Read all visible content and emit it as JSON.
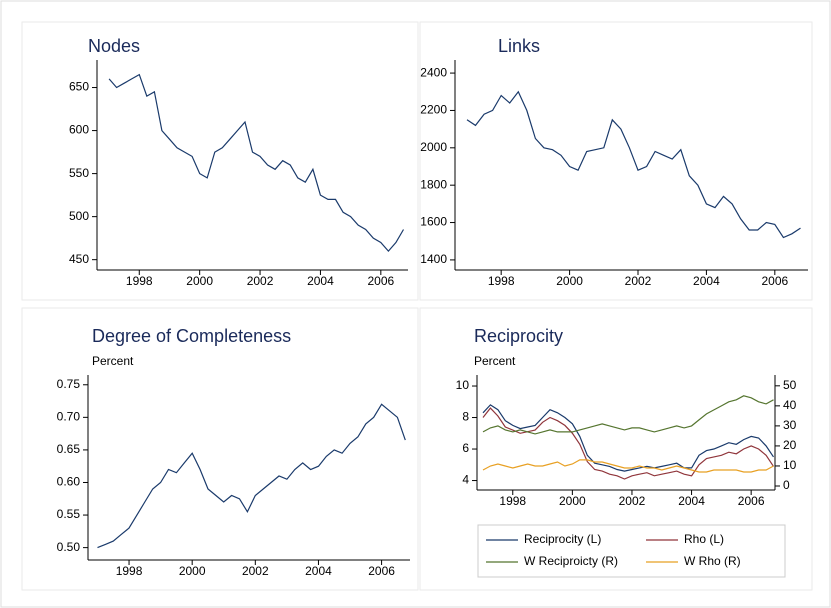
{
  "chart_data": [
    {
      "type": "line",
      "title": "Nodes",
      "color": "#1a3a6b",
      "x": [
        1997,
        1997.25,
        1997.5,
        1997.75,
        1998,
        1998.25,
        1998.5,
        1998.75,
        1999,
        1999.25,
        1999.5,
        1999.75,
        2000,
        2000.25,
        2000.5,
        2000.75,
        2001,
        2001.25,
        2001.5,
        2001.75,
        2002,
        2002.25,
        2002.5,
        2002.75,
        2003,
        2003.25,
        2003.5,
        2003.75,
        2004,
        2004.25,
        2004.5,
        2004.75,
        2005,
        2005.25,
        2005.5,
        2005.75,
        2006,
        2006.25,
        2006.5,
        2006.75
      ],
      "values": [
        660,
        650,
        655,
        660,
        665,
        640,
        645,
        600,
        590,
        580,
        575,
        570,
        550,
        545,
        575,
        580,
        590,
        600,
        610,
        575,
        570,
        560,
        555,
        565,
        560,
        545,
        540,
        555,
        525,
        520,
        520,
        505,
        500,
        490,
        485,
        475,
        470,
        460,
        470,
        485
      ],
      "xlim": [
        1996.6,
        2006.9
      ],
      "xticks": [
        1998,
        2000,
        2002,
        2004,
        2006
      ],
      "ylim": [
        438,
        682
      ],
      "yticks": [
        450,
        500,
        550,
        600,
        650
      ]
    },
    {
      "type": "line",
      "title": "Links",
      "color": "#1a3a6b",
      "x": [
        1997,
        1997.25,
        1997.5,
        1997.75,
        1998,
        1998.25,
        1998.5,
        1998.75,
        1999,
        1999.25,
        1999.5,
        1999.75,
        2000,
        2000.25,
        2000.5,
        2000.75,
        2001,
        2001.25,
        2001.5,
        2001.75,
        2002,
        2002.25,
        2002.5,
        2002.75,
        2003,
        2003.25,
        2003.5,
        2003.75,
        2004,
        2004.25,
        2004.5,
        2004.75,
        2005,
        2005.25,
        2005.5,
        2005.75,
        2006,
        2006.25,
        2006.5,
        2006.75
      ],
      "values": [
        2150,
        2120,
        2180,
        2200,
        2280,
        2240,
        2300,
        2200,
        2050,
        2000,
        1990,
        1960,
        1900,
        1880,
        1980,
        1990,
        2000,
        2150,
        2100,
        2000,
        1880,
        1900,
        1980,
        1960,
        1940,
        1990,
        1850,
        1800,
        1700,
        1680,
        1740,
        1700,
        1620,
        1560,
        1560,
        1600,
        1590,
        1520,
        1540,
        1570
      ],
      "xlim": [
        1996.65,
        2006.97
      ],
      "xticks": [
        1998,
        2000,
        2002,
        2004,
        2006
      ],
      "ylim": [
        1346,
        2470
      ],
      "yticks": [
        1400,
        1600,
        1800,
        2000,
        2200,
        2400
      ]
    },
    {
      "type": "line",
      "title": "Degree of Completeness",
      "subtitle": "Percent",
      "color": "#1a3a6b",
      "x": [
        1997,
        1997.25,
        1997.5,
        1997.75,
        1998,
        1998.25,
        1998.5,
        1998.75,
        1999,
        1999.25,
        1999.5,
        1999.75,
        2000,
        2000.25,
        2000.5,
        2000.75,
        2001,
        2001.25,
        2001.5,
        2001.75,
        2002,
        2002.25,
        2002.5,
        2002.75,
        2003,
        2003.25,
        2003.5,
        2003.75,
        2004,
        2004.25,
        2004.5,
        2004.75,
        2005,
        2005.25,
        2005.5,
        2005.75,
        2006,
        2006.25,
        2006.5,
        2006.75
      ],
      "values": [
        0.5,
        0.505,
        0.51,
        0.52,
        0.53,
        0.55,
        0.57,
        0.59,
        0.6,
        0.62,
        0.615,
        0.63,
        0.645,
        0.62,
        0.59,
        0.58,
        0.57,
        0.58,
        0.575,
        0.555,
        0.58,
        0.59,
        0.6,
        0.61,
        0.605,
        0.62,
        0.63,
        0.62,
        0.625,
        0.64,
        0.65,
        0.645,
        0.66,
        0.67,
        0.69,
        0.7,
        0.72,
        0.71,
        0.7,
        0.665
      ],
      "xlim": [
        1996.7,
        2006.9
      ],
      "xticks": [
        1998,
        2000,
        2002,
        2004,
        2006
      ],
      "ylim": [
        0.481,
        0.765
      ],
      "yticks": [
        {
          "value": 0.5,
          "label": "0.50"
        },
        0.55,
        {
          "value": 0.6,
          "label": "0.60"
        },
        0.65,
        {
          "value": 0.7,
          "label": "0.70"
        },
        0.75
      ]
    },
    {
      "type": "line",
      "title": "Reciprocity",
      "subtitle": "Percent",
      "legend": "bottom",
      "x": [
        1997,
        1997.25,
        1997.5,
        1997.75,
        1998,
        1998.25,
        1998.5,
        1998.75,
        1999,
        1999.25,
        1999.5,
        1999.75,
        2000,
        2000.25,
        2000.5,
        2000.75,
        2001,
        2001.25,
        2001.5,
        2001.75,
        2002,
        2002.25,
        2002.5,
        2002.75,
        2003,
        2003.25,
        2003.5,
        2003.75,
        2004,
        2004.25,
        2004.5,
        2004.75,
        2005,
        2005.25,
        2005.5,
        2005.75,
        2006,
        2006.25,
        2006.5,
        2006.75
      ],
      "series": [
        {
          "name": "Reciprocity (L)",
          "color": "#1a3a6b",
          "values": [
            8.3,
            8.8,
            8.5,
            7.8,
            7.5,
            7.3,
            7.4,
            7.5,
            8.0,
            8.5,
            8.3,
            8.0,
            7.6,
            6.8,
            5.6,
            5.1,
            5.0,
            4.9,
            4.7,
            4.6,
            4.7,
            4.8,
            4.9,
            4.8,
            4.9,
            5.0,
            5.1,
            4.8,
            4.8,
            5.6,
            5.9,
            6.0,
            6.2,
            6.4,
            6.3,
            6.6,
            6.8,
            6.7,
            6.2,
            5.5
          ]
        },
        {
          "name": "Rho (L)",
          "color": "#90353b",
          "values": [
            8.0,
            8.6,
            8.1,
            7.4,
            7.2,
            7.0,
            7.1,
            7.2,
            7.7,
            8.0,
            7.8,
            7.5,
            7.0,
            6.3,
            5.2,
            4.7,
            4.6,
            4.4,
            4.3,
            4.1,
            4.3,
            4.4,
            4.5,
            4.3,
            4.4,
            4.5,
            4.6,
            4.4,
            4.3,
            5.0,
            5.4,
            5.5,
            5.6,
            5.8,
            5.7,
            6.0,
            6.2,
            6.0,
            5.6,
            4.9
          ]
        },
        {
          "name": "W Reciproicty (R)",
          "color": "#55752f",
          "axis": "y2",
          "values": [
            27,
            29,
            30,
            28,
            27,
            28,
            27,
            26,
            27,
            28,
            27,
            27,
            27,
            28,
            29,
            30,
            31,
            30,
            29,
            28,
            29,
            29,
            28,
            27,
            28,
            29,
            30,
            29,
            30,
            33,
            36,
            38,
            40,
            42,
            43,
            45,
            44,
            42,
            41,
            43
          ]
        },
        {
          "name": "W Rho (R)",
          "color": "#e8a023",
          "axis": "y2",
          "values": [
            8,
            10,
            11,
            10,
            9,
            10,
            11,
            10,
            10,
            11,
            12,
            10,
            11,
            13,
            13,
            12,
            12,
            11,
            10,
            9,
            9,
            10,
            9,
            9,
            8,
            9,
            10,
            9,
            8,
            7,
            7,
            8,
            8,
            8,
            8,
            7,
            7,
            8,
            8,
            10
          ]
        }
      ],
      "xlim": [
        1996.8,
        2006.8
      ],
      "xticks": [
        1998,
        2000,
        2002,
        2004,
        2006
      ],
      "ylim": [
        3.4,
        10.7
      ],
      "yticks": [
        4,
        6,
        8,
        10
      ],
      "y2lim": [
        -2,
        55.4
      ],
      "y2ticks": [
        0,
        10,
        20,
        30,
        40,
        50
      ]
    }
  ]
}
